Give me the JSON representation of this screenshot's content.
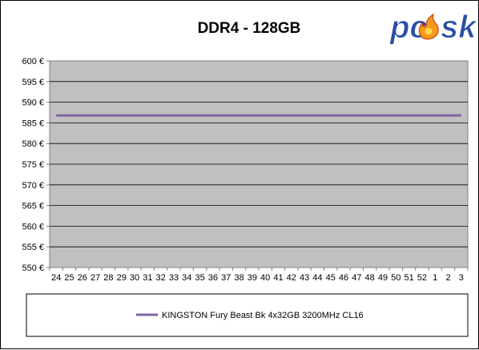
{
  "logo": {
    "text_pc": "pc",
    "text_o": "o",
    "text_sk": "sk",
    "icon": "flame-o-icon"
  },
  "chart_data": {
    "type": "line",
    "title": "DDR4 - 128GB",
    "xlabel": "",
    "ylabel": "",
    "x": [
      "24",
      "25",
      "26",
      "27",
      "28",
      "29",
      "30",
      "31",
      "32",
      "33",
      "34",
      "35",
      "36",
      "37",
      "38",
      "39",
      "40",
      "41",
      "42",
      "43",
      "44",
      "45",
      "46",
      "47",
      "48",
      "49",
      "50",
      "51",
      "52",
      "1",
      "2",
      "3"
    ],
    "yticks": [
      "550 €",
      "555 €",
      "560 €",
      "565 €",
      "570 €",
      "575 €",
      "580 €",
      "585 €",
      "590 €",
      "595 €",
      "600 €"
    ],
    "ylim": [
      550,
      600
    ],
    "grid": true,
    "legend_position": "bottom",
    "plot_background": "#c0c0c0",
    "series": [
      {
        "name": "KINGSTON Fury Beast Bk 4x32GB 3200MHz CL16",
        "color": "#8064a2",
        "values": [
          586.8,
          586.8,
          586.8,
          586.8,
          586.8,
          586.8,
          586.8,
          586.8,
          586.8,
          586.8,
          586.8,
          586.8,
          586.8,
          586.8,
          586.8,
          586.8,
          586.8,
          586.8,
          586.8,
          586.8,
          586.8,
          586.8,
          586.8,
          586.8,
          586.8,
          586.8,
          586.8,
          586.8,
          586.8,
          586.8,
          586.8,
          586.8
        ]
      }
    ]
  }
}
